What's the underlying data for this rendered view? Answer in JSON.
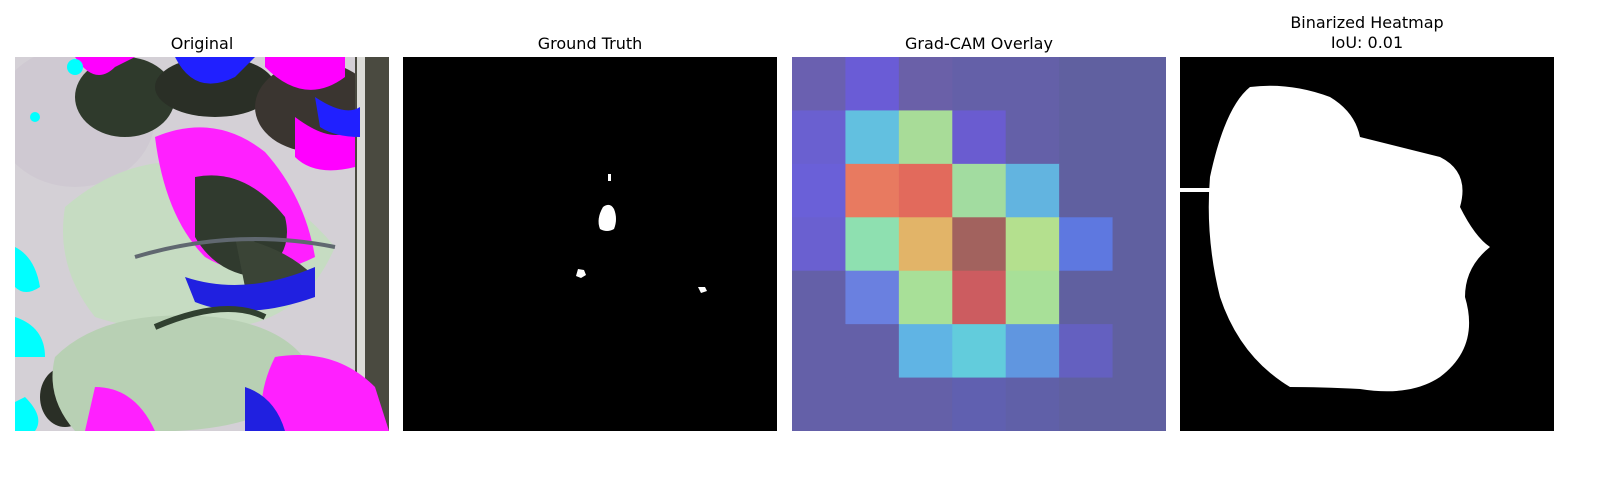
{
  "panels": [
    {
      "title": "Original"
    },
    {
      "title": "Ground Truth"
    },
    {
      "title": "Grad-CAM Overlay"
    },
    {
      "title": "Binarized Heatmap\nIoU: 0.01"
    }
  ],
  "gradcam_grid": {
    "rows": 7,
    "cols": 7,
    "colors": [
      [
        "#6a60b0",
        "#6a5cd6",
        "#6a60a8",
        "#6460a8",
        "#6460a8",
        "#6060a0",
        "#6060a0"
      ],
      [
        "#6a60d0",
        "#62c0e0",
        "#a8dc98",
        "#6a5cd0",
        "#6460a8",
        "#6060a0",
        "#6060a0"
      ],
      [
        "#6a60d8",
        "#e87a60",
        "#e26a5c",
        "#a2dca0",
        "#62b4e0",
        "#6060a0",
        "#6060a0"
      ],
      [
        "#6a60d0",
        "#8ee0b0",
        "#e2b468",
        "#a2625e",
        "#b4e08e",
        "#5e78e0",
        "#6060a0"
      ],
      [
        "#6460a8",
        "#6a80e0",
        "#a8e098",
        "#cc5c60",
        "#a8e098",
        "#6060a0",
        "#6060a0"
      ],
      [
        "#6460a8",
        "#6460a8",
        "#60b4e4",
        "#62ccdc",
        "#6096e0",
        "#6460c0",
        "#6060a0"
      ],
      [
        "#6460a8",
        "#6460a8",
        "#6460a8",
        "#6060b0",
        "#6060a8",
        "#6060a0",
        "#6060a0"
      ]
    ]
  }
}
